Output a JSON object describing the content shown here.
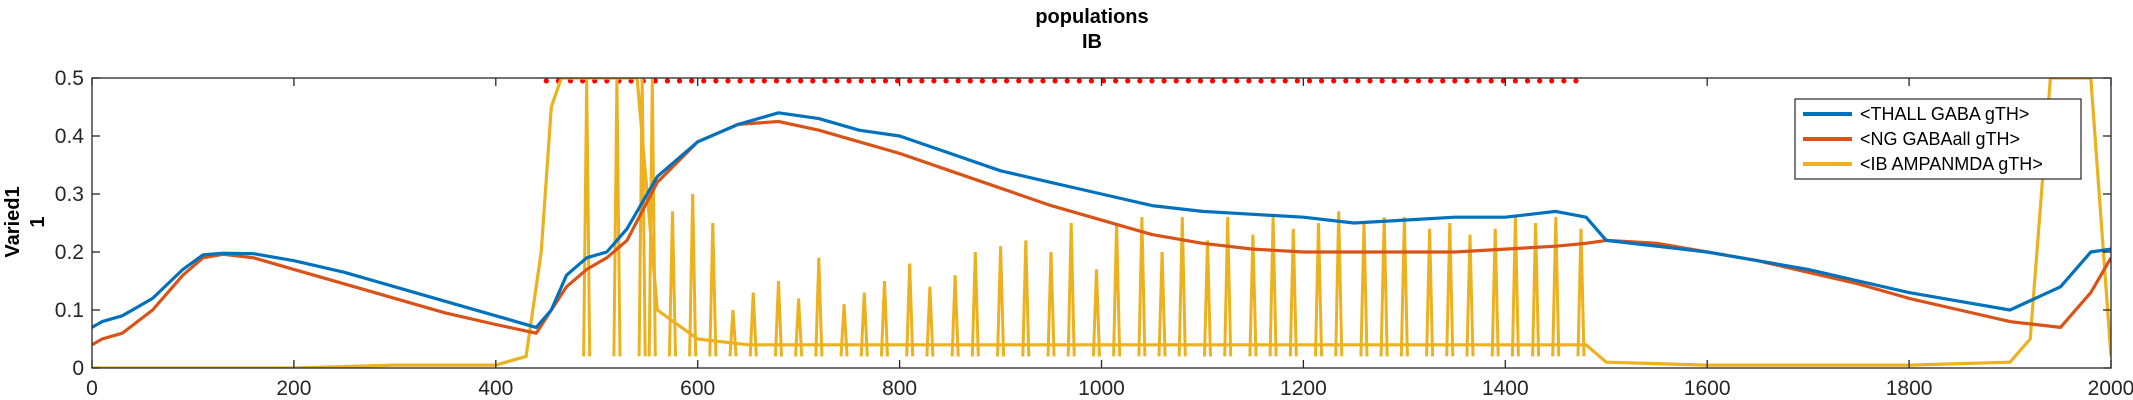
{
  "chart_data": {
    "type": "line",
    "title": [
      "populations",
      "IB"
    ],
    "ylabel": [
      "Varied1",
      "1"
    ],
    "xlabel": "",
    "xlim": [
      0,
      2000
    ],
    "ylim": [
      0,
      0.5
    ],
    "xticks": [
      0,
      200,
      400,
      600,
      800,
      1000,
      1200,
      1400,
      1600,
      1800,
      2000
    ],
    "yticks": [
      0,
      0.1,
      0.2,
      0.3,
      0.4,
      0.5
    ],
    "ytick_labels": [
      "0",
      "0.1",
      "0.2",
      "0.3",
      "0.4",
      "0.5"
    ],
    "grid": false,
    "legend_position": "top-right",
    "series": [
      {
        "name": "<THALL GABA gTH>",
        "color": "#0072BD",
        "x": [
          0,
          10,
          30,
          60,
          90,
          110,
          130,
          160,
          200,
          250,
          300,
          350,
          400,
          440,
          455,
          470,
          490,
          510,
          530,
          560,
          600,
          640,
          680,
          720,
          760,
          800,
          850,
          900,
          950,
          1000,
          1050,
          1100,
          1150,
          1200,
          1250,
          1300,
          1350,
          1400,
          1450,
          1480,
          1500,
          1550,
          1600,
          1650,
          1700,
          1750,
          1800,
          1850,
          1900,
          1950,
          1980,
          2000
        ],
        "y": [
          0.07,
          0.08,
          0.09,
          0.12,
          0.17,
          0.195,
          0.198,
          0.197,
          0.185,
          0.165,
          0.14,
          0.115,
          0.09,
          0.07,
          0.1,
          0.16,
          0.19,
          0.2,
          0.24,
          0.33,
          0.39,
          0.42,
          0.44,
          0.43,
          0.41,
          0.4,
          0.37,
          0.34,
          0.32,
          0.3,
          0.28,
          0.27,
          0.265,
          0.26,
          0.25,
          0.255,
          0.26,
          0.26,
          0.27,
          0.26,
          0.22,
          0.21,
          0.2,
          0.185,
          0.17,
          0.15,
          0.13,
          0.115,
          0.1,
          0.14,
          0.2,
          0.205
        ]
      },
      {
        "name": "<NG GABAall gTH>",
        "color": "#D95319",
        "x": [
          0,
          10,
          30,
          60,
          90,
          110,
          130,
          160,
          200,
          250,
          300,
          350,
          400,
          440,
          455,
          470,
          490,
          510,
          530,
          560,
          600,
          640,
          680,
          720,
          760,
          800,
          850,
          900,
          950,
          1000,
          1050,
          1100,
          1150,
          1200,
          1250,
          1300,
          1350,
          1400,
          1450,
          1480,
          1500,
          1550,
          1600,
          1650,
          1700,
          1750,
          1800,
          1850,
          1900,
          1950,
          1980,
          2000
        ],
        "y": [
          0.04,
          0.05,
          0.06,
          0.1,
          0.16,
          0.19,
          0.196,
          0.19,
          0.17,
          0.145,
          0.12,
          0.095,
          0.075,
          0.06,
          0.1,
          0.14,
          0.17,
          0.19,
          0.22,
          0.32,
          0.39,
          0.42,
          0.425,
          0.41,
          0.39,
          0.37,
          0.34,
          0.31,
          0.28,
          0.255,
          0.23,
          0.215,
          0.205,
          0.2,
          0.2,
          0.2,
          0.2,
          0.205,
          0.21,
          0.215,
          0.22,
          0.215,
          0.2,
          0.185,
          0.165,
          0.145,
          0.12,
          0.1,
          0.08,
          0.07,
          0.13,
          0.19
        ]
      },
      {
        "name": "<IB AMPANMDA gTH>",
        "color": "#EDB120",
        "x": [
          0,
          100,
          200,
          300,
          400,
          430,
          445,
          455,
          465,
          480,
          500,
          520,
          540,
          560,
          600,
          650,
          700,
          750,
          800,
          850,
          900,
          950,
          1000,
          1050,
          1100,
          1150,
          1200,
          1250,
          1300,
          1350,
          1400,
          1450,
          1480,
          1500,
          1600,
          1700,
          1800,
          1900,
          1920,
          1940,
          1960,
          1980,
          2000
        ],
        "y": [
          0,
          0,
          0,
          0.005,
          0.005,
          0.02,
          0.2,
          0.45,
          0.5,
          0.5,
          0.5,
          0.5,
          0.5,
          0.1,
          0.05,
          0.04,
          0.04,
          0.04,
          0.04,
          0.04,
          0.04,
          0.04,
          0.04,
          0.04,
          0.04,
          0.04,
          0.04,
          0.04,
          0.04,
          0.04,
          0.04,
          0.04,
          0.04,
          0.01,
          0.005,
          0.005,
          0.005,
          0.01,
          0.05,
          0.5,
          0.5,
          0.5,
          0.02
        ]
      }
    ],
    "spikes": {
      "series": 2,
      "x": [
        490,
        520,
        545,
        555,
        575,
        595,
        615,
        635,
        655,
        680,
        700,
        720,
        745,
        765,
        785,
        810,
        830,
        855,
        875,
        900,
        925,
        950,
        970,
        995,
        1015,
        1040,
        1060,
        1080,
        1105,
        1125,
        1150,
        1170,
        1190,
        1215,
        1235,
        1260,
        1280,
        1300,
        1325,
        1345,
        1365,
        1390,
        1410,
        1430,
        1450,
        1475
      ],
      "y": [
        0.5,
        0.5,
        0.5,
        0.5,
        0.27,
        0.3,
        0.25,
        0.1,
        0.13,
        0.15,
        0.12,
        0.19,
        0.11,
        0.13,
        0.15,
        0.18,
        0.14,
        0.16,
        0.2,
        0.21,
        0.22,
        0.2,
        0.25,
        0.17,
        0.25,
        0.26,
        0.2,
        0.26,
        0.22,
        0.26,
        0.23,
        0.26,
        0.24,
        0.25,
        0.27,
        0.25,
        0.26,
        0.26,
        0.24,
        0.25,
        0.23,
        0.24,
        0.26,
        0.25,
        0.26,
        0.24
      ]
    },
    "marker_row": {
      "y": 0.495,
      "color": "#FF0000",
      "x_start": 450,
      "x_end": 1480,
      "spacing": 12
    }
  }
}
